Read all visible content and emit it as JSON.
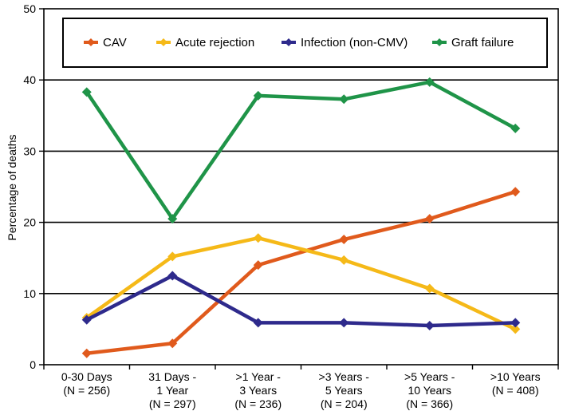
{
  "chart_data": {
    "type": "line",
    "title": "",
    "xlabel": "",
    "ylabel": "Percentage of deaths",
    "ylim": [
      0,
      50
    ],
    "yticks": [
      0,
      10,
      20,
      30,
      40,
      50
    ],
    "grid": true,
    "legend_position": "top",
    "categories": [
      [
        "0-30 Days",
        "(N = 256)"
      ],
      [
        "31 Days -",
        "1 Year",
        "(N  = 297)"
      ],
      [
        ">1 Year -",
        "3 Years",
        "(N = 236)"
      ],
      [
        ">3 Years -",
        "5 Years",
        "(N = 204)"
      ],
      [
        ">5 Years -",
        "10 Years",
        "(N = 366)"
      ],
      [
        ">10 Years",
        "(N = 408)"
      ]
    ],
    "series": [
      {
        "name": "CAV",
        "color": "#e05a1c",
        "values": [
          1.6,
          3.0,
          14.0,
          17.6,
          20.5,
          24.3
        ]
      },
      {
        "name": "Acute rejection",
        "color": "#f5b918",
        "values": [
          6.6,
          15.2,
          17.8,
          14.7,
          10.7,
          5.0
        ]
      },
      {
        "name": "Infection (non-CMV)",
        "color": "#2e2a8c",
        "values": [
          6.3,
          12.5,
          5.9,
          5.9,
          5.5,
          5.9
        ]
      },
      {
        "name": "Graft failure",
        "color": "#1f9448",
        "values": [
          38.3,
          20.5,
          37.8,
          37.3,
          39.7,
          33.2
        ]
      }
    ]
  }
}
